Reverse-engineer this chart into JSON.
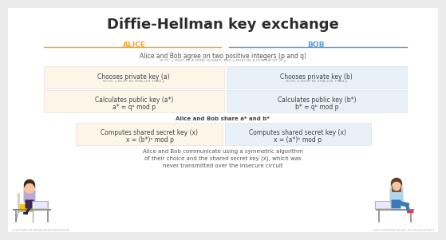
{
  "title": "Diffie-Hellman key exchange",
  "bg_color": "#ebebeb",
  "inner_bg": "#ffffff",
  "alice_color": "#f5a623",
  "bob_color": "#5b9bd5",
  "alice_box_color": "#fdf5e8",
  "bob_box_color": "#e8f0f8",
  "text_dark": "#444444",
  "text_small": "#aaaaaa",
  "header_alice": "ALICE",
  "header_bob": "BOB",
  "agree_text": "Alice and Bob agree on two positive integers (p and q)",
  "agree_note": "NOTE: p MUST BE A PRIME NUMBER, AND q MUST BE A GENERATOR OF p",
  "alice_private_title": "Chooses private key (a)",
  "alice_private_note": "NOTE: a MUST BE SMALLER THAN p",
  "bob_private_title": "Chooses private key (b)",
  "bob_private_note": "NOTE: b MUST BE SMALLER THAN p",
  "alice_public_title": "Calculates public key (a*)",
  "alice_public_formula": "a* = qᵃ mod p",
  "bob_public_title": "Calculates public key (b*)",
  "bob_public_formula": "b* = qᵇ mod p",
  "share_text": "Alice and Bob share a* and b*",
  "alice_secret_title": "Computes shared secret key (x)",
  "alice_secret_formula": "x = (b*)ᵃ mod p",
  "bob_secret_title": "Computes shared secret key (x)",
  "bob_secret_formula": "x = (a*)ᵇ mod p",
  "final_text": "Alice and Bob communicate using a symmetric algorithm\nof their choice and the shared secret key (x), which was\nnever transmitted over the insecure circuit",
  "footnote_left": "ILLUSTRATION: ANNA KALANDADZE/TDN",
  "footnote_right": "LAST REVIEWED BY ALL RIGHTS RESERVED"
}
